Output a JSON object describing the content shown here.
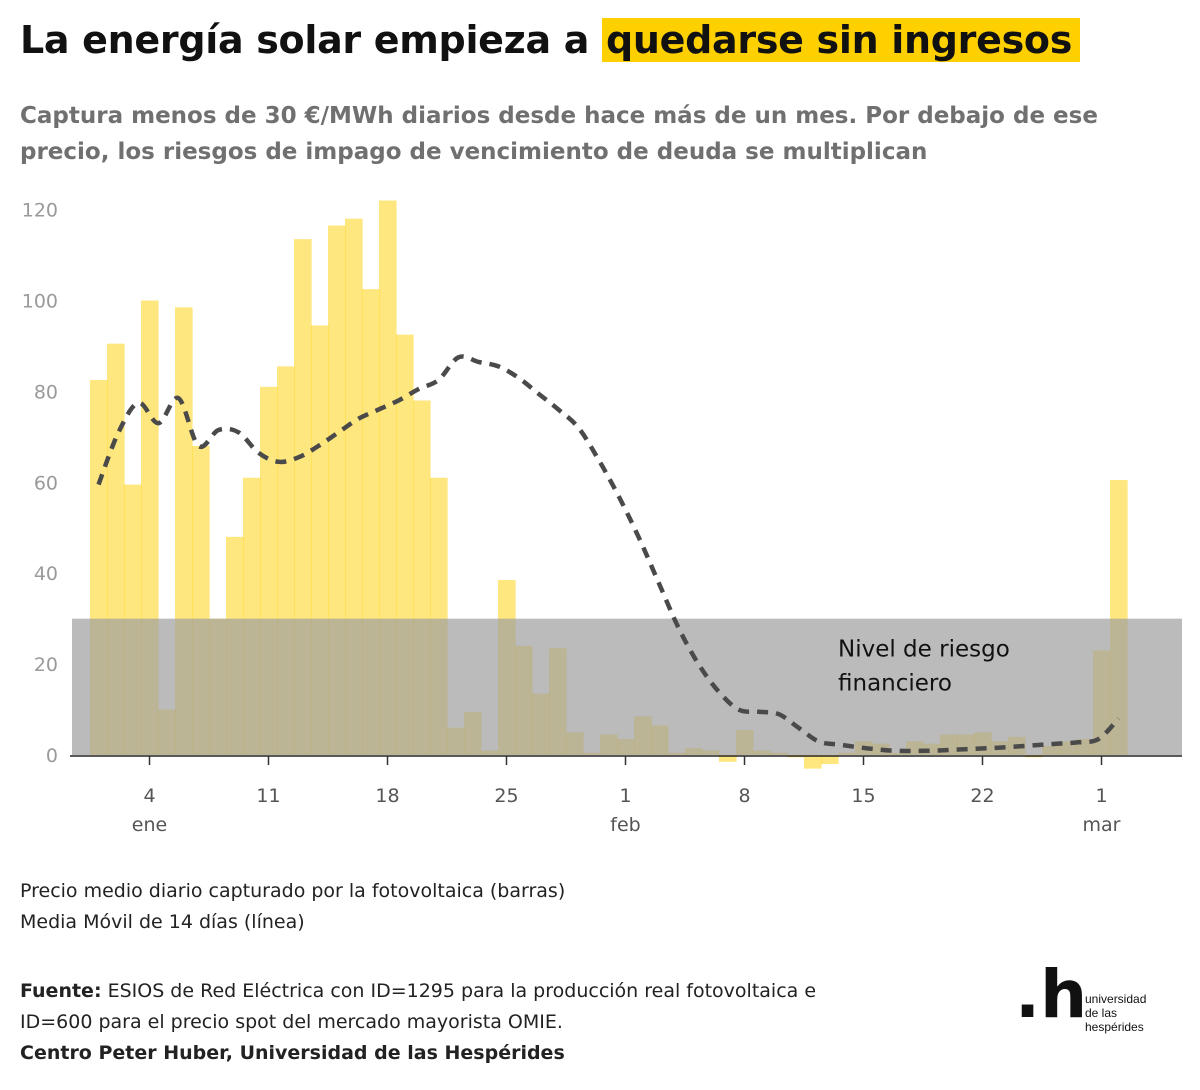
{
  "title_start": "La energía solar empieza a",
  "title_highlight": "quedarse sin ingresos",
  "subtitle": "Captura menos de 30 €/MWh diarios desde hace más de un mes. Por debajo de ese precio, los riesgos de impago de vencimiento de deuda se multiplican",
  "legend": {
    "line1": "Precio medio diario capturado por la fotovoltaica (barras)",
    "line2": "Media Móvil de 14 días (línea)"
  },
  "source": {
    "label": "Fuente:",
    "text1": " ESIOS de Red Eléctrica con ID=1295 para la producción real fotovoltaica e",
    "text2": "ID=600 para el precio spot del mercado mayorista OMIE.",
    "credit": "Centro Peter Huber, Universidad de las Hespérides"
  },
  "logo": {
    "mark": ".h",
    "line1": "universidad",
    "line2": "de las",
    "line3": "hespérides"
  },
  "colors": {
    "bars": "#ffd000",
    "risk_band": "#9e9e9e",
    "line": "#4a4a4a",
    "highlight": "#ffd000"
  },
  "chart_data": {
    "type": "bar",
    "x_start": "2025-01-01",
    "x_end": "2025-03-03",
    "ylim": [
      -3,
      122
    ],
    "yticks": [
      0,
      20,
      40,
      60,
      80,
      100,
      120
    ],
    "xticks": [
      {
        "day": 3,
        "label": "4",
        "sublabel": "ene"
      },
      {
        "day": 10,
        "label": "11",
        "sublabel": ""
      },
      {
        "day": 17,
        "label": "18",
        "sublabel": ""
      },
      {
        "day": 24,
        "label": "25",
        "sublabel": ""
      },
      {
        "day": 31,
        "label": "1",
        "sublabel": "feb"
      },
      {
        "day": 38,
        "label": "8",
        "sublabel": ""
      },
      {
        "day": 45,
        "label": "15",
        "sublabel": ""
      },
      {
        "day": 52,
        "label": "22",
        "sublabel": ""
      },
      {
        "day": 59,
        "label": "1",
        "sublabel": "mar"
      }
    ],
    "bars": [
      82.5,
      90.5,
      59.5,
      100,
      10,
      98.5,
      68,
      30,
      48,
      61,
      81,
      85.5,
      113.5,
      94.5,
      116.5,
      118,
      102.5,
      122,
      92.5,
      78,
      61,
      6,
      9.5,
      1,
      38.5,
      24,
      13.5,
      23.5,
      5,
      0.5,
      4.5,
      3.5,
      8.5,
      6.5,
      0.5,
      1.5,
      1,
      -1.5,
      5.5,
      1,
      0.5,
      -0.5,
      -3,
      -2,
      0.5,
      3,
      2.5,
      0.5,
      3,
      2.5,
      4.5,
      4.5,
      5,
      3,
      4,
      -0.5,
      2,
      3,
      3.5,
      23,
      60.5
    ],
    "moving_average": [
      59.5,
      71,
      77.5,
      73,
      78.5,
      68,
      71.5,
      71,
      66.5,
      64.5,
      65.5,
      68,
      71,
      74,
      76,
      78,
      80.5,
      82.5,
      87.5,
      86.5,
      85.5,
      83,
      79.5,
      76,
      72,
      65,
      57,
      48,
      38,
      28,
      20,
      14,
      10,
      9.5,
      9,
      6,
      3,
      2.3,
      1.7,
      1.2,
      0.9,
      0.9,
      1,
      1.2,
      1.4,
      1.6,
      1.9,
      2.2,
      2.5,
      2.8,
      3.5,
      8
    ],
    "moving_average_start_day": 0,
    "risk_band": {
      "min": 0,
      "max": 30,
      "label_line1": "Nivel de riesgo",
      "label_line2": "financiero"
    }
  }
}
